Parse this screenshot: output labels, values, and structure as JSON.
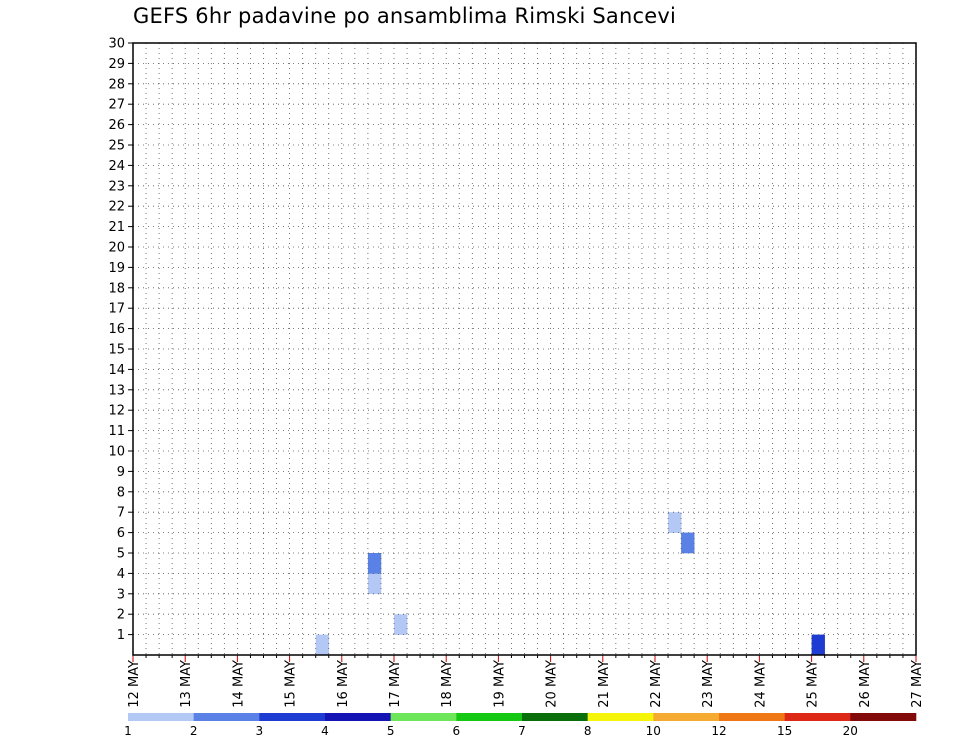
{
  "title": "GEFS 6hr padavine po ansamblima Rimski Sancevi",
  "chart_data": {
    "type": "heatmap",
    "title": "GEFS 6hr padavine po ansamblima Rimski Sancevi",
    "xlabel": "",
    "ylabel": "",
    "x_start": "12 MAY 00Z",
    "x_step_hours": 6,
    "x_count": 60,
    "x_tick_labels": [
      "12 MAY",
      "13 MAY",
      "14 MAY",
      "15 MAY",
      "16 MAY",
      "17 MAY",
      "18 MAY",
      "19 MAY",
      "20 MAY",
      "21 MAY",
      "22 MAY",
      "23 MAY",
      "24 MAY",
      "25 MAY",
      "26 MAY",
      "27 MAY"
    ],
    "y_tick_labels": [
      "1",
      "2",
      "3",
      "4",
      "5",
      "6",
      "7",
      "8",
      "9",
      "10",
      "11",
      "12",
      "13",
      "14",
      "15",
      "16",
      "17",
      "18",
      "19",
      "20",
      "21",
      "22",
      "23",
      "24",
      "25",
      "26",
      "27",
      "28",
      "29",
      "30"
    ],
    "ylim": [
      0,
      30
    ],
    "grid": true,
    "legend": {
      "placement": "bottom",
      "labels": [
        "1",
        "2",
        "3",
        "4",
        "5",
        "6",
        "7",
        "8",
        "10",
        "12",
        "15",
        "20"
      ],
      "colors": [
        "#b4c8f5",
        "#5a82e6",
        "#1e3cd2",
        "#1414b4",
        "#6ee65a",
        "#14c814",
        "#0a6e0a",
        "#f5f50a",
        "#f5aa32",
        "#f07814",
        "#dc2814",
        "#820a0a"
      ]
    },
    "classes": {
      "a": 1.5,
      "b": 2.5,
      "c": 3.5,
      "d": 4.5,
      "e": 5.5,
      "f": 6.5,
      "g": 7.5,
      "h": 9,
      "i": 11,
      "j": 13.5,
      "k": 17.5,
      "l": 22
    },
    "rows": [
      "..............a.....................................c.......",
      "....................a.........................................",
      "............................................................",
      "..................a..........................................",
      "..................b..........................................",
      "..........................................b..................",
      ".........................................a...................",
      "............................................................",
      "............................................................",
      "............................................................",
      "............................................................",
      "............................................................",
      "............................................................",
      "............................................................",
      "............................................................",
      "............................................................",
      "............................................................",
      "............................................................",
      "............................................................",
      "............................................................",
      "............................................................",
      "............................................................",
      "............................................................",
      "............................................................",
      "............................................................",
      "............................................................",
      "............................................................",
      "............................................................",
      "............................................................",
      "............................................................"
    ]
  }
}
